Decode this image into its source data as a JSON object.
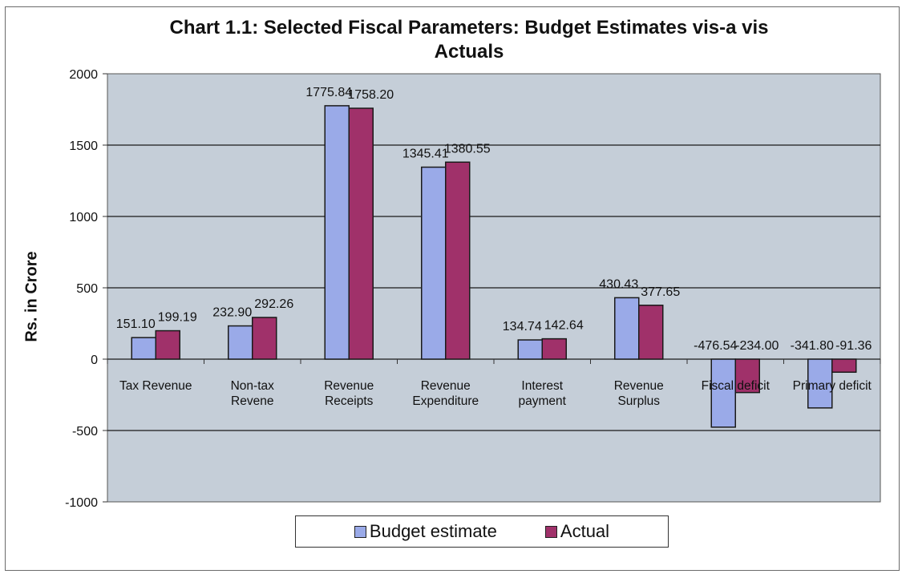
{
  "chart_data": {
    "type": "bar",
    "title": "Chart 1.1: Selected Fiscal Parameters: Budget Estimates vis-a vis Actuals",
    "title_lines": [
      "Chart 1.1: Selected Fiscal Parameters: Budget Estimates vis-a vis",
      "Actuals"
    ],
    "ylabel": "Rs. in Crore",
    "xlabel": "",
    "ylim": [
      -1000,
      2000
    ],
    "yticks": [
      2000,
      1500,
      1000,
      500,
      0,
      -500,
      -1000
    ],
    "grid": true,
    "legend_position": "bottom",
    "categories": [
      [
        "Tax Revenue"
      ],
      [
        "Non-tax",
        "Revene"
      ],
      [
        "Revenue",
        "Receipts"
      ],
      [
        "Revenue",
        "Expenditure"
      ],
      [
        "Interest",
        "payment"
      ],
      [
        "Revenue",
        "Surplus"
      ],
      [
        "Fiscal deficit"
      ],
      [
        "Primary deficit"
      ]
    ],
    "series": [
      {
        "name": "Budget estimate",
        "color": "#9aaae8",
        "values": [
          151.1,
          232.9,
          1775.84,
          1345.41,
          134.74,
          430.43,
          -476.54,
          -341.8
        ],
        "labels": [
          "151.10",
          "232.90",
          "1775.84",
          "1345.41",
          "134.74",
          "430.43",
          "-476.54",
          "-341.80"
        ]
      },
      {
        "name": "Actual",
        "color": "#a0316a",
        "values": [
          199.19,
          292.26,
          1758.2,
          1380.55,
          142.64,
          377.65,
          -234.0,
          -91.36
        ],
        "labels": [
          "199.19",
          "292.26",
          "1758.20",
          "1380.55",
          "142.64",
          "377.65",
          "-234.00",
          "-91.36"
        ]
      }
    ],
    "plot_background": "#c5ced8"
  }
}
